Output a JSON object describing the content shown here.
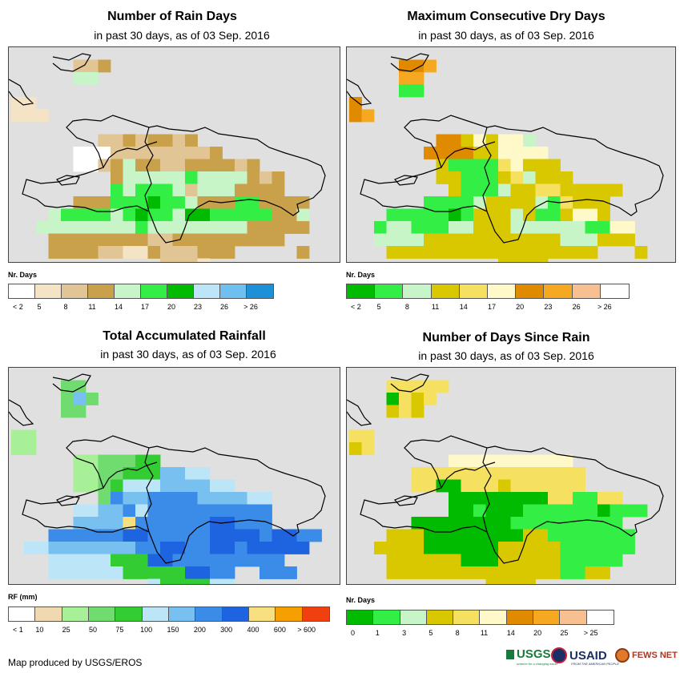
{
  "panels": [
    {
      "title": "Number of Rain Days",
      "subtitle": "in past 30 days, as of 03 Sep. 2016",
      "legend_title": "Nr. Days",
      "legend_colors": [
        "#ffffff",
        "#f5e3c6",
        "#e2c594",
        "#c8a14a",
        "#c8f5c8",
        "#33ee44",
        "#00bb00",
        "#bce6f8",
        "#6ec0f0",
        "#1e90d8"
      ],
      "legend_labels": [
        "< 2",
        "5",
        "8",
        "11",
        "14",
        "17",
        "20",
        "23",
        "26",
        "> 26"
      ],
      "palette": [
        "#ffffff",
        "#f5e3c6",
        "#e2c594",
        "#c8a14a",
        "#c8f5c8",
        "#33ee44",
        "#00bb00",
        "#bce6f8"
      ],
      "grid": [
        "..........................",
        ".....223..................",
        ".....44...................",
        "..........................",
        "11........................",
        "111.......................",
        "..........................",
        ".......22323323..........",
        ".....000222222223.........",
        ".....002343322333323......",
        "........34444454444323....",
        "........54555424443333....",
        ".....3335556554333553333..",
        "...455554565546655555334..",
        "..4444444454444444433333..",
        "...3333333322333333333....",
        "...333322113222333.....3..",
        "............2221..........",
        ".............3.3..........",
        ".............33..........."
      ]
    },
    {
      "title": "Maximum Consecutive Dry Days",
      "subtitle": "in past 30 days, as of 03 Sep. 2016",
      "legend_title": "Nr. Days",
      "legend_colors": [
        "#00bb00",
        "#33ee44",
        "#c8f5c8",
        "#d9c800",
        "#f5e060",
        "#fff8c8",
        "#e08a00",
        "#f5a820",
        "#f8c090",
        "#ffffff"
      ],
      "legend_labels": [
        "< 2",
        "5",
        "8",
        "11",
        "14",
        "17",
        "20",
        "23",
        "26",
        "> 26"
      ],
      "palette": [
        "#00bb00",
        "#33ee44",
        "#c8f5c8",
        "#d9c800",
        "#f5e060",
        "#fff8c8",
        "#e08a00",
        "#f5a820",
        "#f8c090"
      ],
      "grid": [
        "..........................",
        "....667...................",
        "....77....................",
        "....11....................",
        "6.........................",
        "67........................",
        "..........................",
        ".......66353552..........",
        "......6666335555.........",
        ".......3111145333.........",
        ".......33111342333........",
        "........31112334433333....",
        "......111123333214333....",
        "...111110133323113553.....",
        "..122111223332222221155...",
        "..222233333333333222333...",
        "...33333333333333333...3..",
        "............3333..........",
        ".............3............",
        ".............33..........."
      ]
    },
    {
      "title": "Total Accumulated Rainfall",
      "subtitle": "in past 30 days, as of 03 Sep. 2016",
      "legend_title": "RF (mm)",
      "legend_colors": [
        "#ffffff",
        "#f0d9b0",
        "#a8f098",
        "#70dc70",
        "#33cc33",
        "#bce6f8",
        "#78c0f0",
        "#3a8ce8",
        "#1e64e0",
        "#f8e080",
        "#f5a000",
        "#f04010"
      ],
      "legend_labels": [
        "< 1",
        "10",
        "25",
        "50",
        "75",
        "100",
        "150",
        "200",
        "300",
        "400",
        "600",
        "> 600"
      ],
      "palette": [
        "#ffffff",
        "#f0d9b0",
        "#a8f098",
        "#70dc70",
        "#33cc33",
        "#bce6f8",
        "#78c0f0",
        "#3a8ce8",
        "#1e64e0",
        "#f8e080"
      ],
      "grid": [
        "..........................",
        "....33....................",
        "....363...................",
        "....33....................",
        "..........................",
        "22........................",
        "22........................",
        ".....2233344..............",
        ".....22334446655..........",
        ".....2234555666655........",
        ".......37667777666655.....",
        ".....5566757777777777.....",
        ".....6666977777788777.....",
        "...7777778877777888878877..",
        ".55666666677887788788888..",
        "...5555544488777777777....",
        "...555555444448877..777...",
        "...........5444455........",
        "............5555..........",
        ".............55..........."
      ]
    },
    {
      "title": "Number of Days Since Rain",
      "subtitle": "in past 30 days, as of 03 Sep. 2016",
      "legend_title": "Nr. Days",
      "legend_colors": [
        "#00bb00",
        "#33ee44",
        "#c8f5c8",
        "#d9c800",
        "#f5e060",
        "#fff8c8",
        "#e08a00",
        "#f5a820",
        "#f8c090",
        "#ffffff"
      ],
      "legend_labels": [
        "0",
        "1",
        "3",
        "5",
        "8",
        "11",
        "14",
        "20",
        "25",
        "> 25"
      ],
      "palette": [
        "#00bb00",
        "#33ee44",
        "#c8f5c8",
        "#d9c800",
        "#f5e060",
        "#fff8c8",
        "#e08a00",
        "#f5a820",
        "#f8c090"
      ],
      "grid": [
        "..........................",
        "...44444..................",
        "...0434...................",
        "...343....................",
        "..........................",
        "44........................",
        "34........................",
        "........5555555555........",
        ".....44444444444444.......",
        ".....44004443444444......",
        "........00000000441144....",
        "........0010001111110111..",
        ".....00000000111111111....",
        "...33300000000331111111...",
        "..333300000033333111111...",
        "...3333330003333311111....",
        "...333333333333331133.....",
        "...........3333...........",
        "............3333..........",
        ".............33..........."
      ]
    }
  ],
  "footer": {
    "credit": "Map produced by USGS/EROS",
    "logos": {
      "usgs": "USGS",
      "usgs_tagline": "science for a changing world",
      "usaid": "USAID",
      "usaid_tagline": "FROM THE AMERICAN PEOPLE",
      "fews": "FEWS NET"
    }
  }
}
